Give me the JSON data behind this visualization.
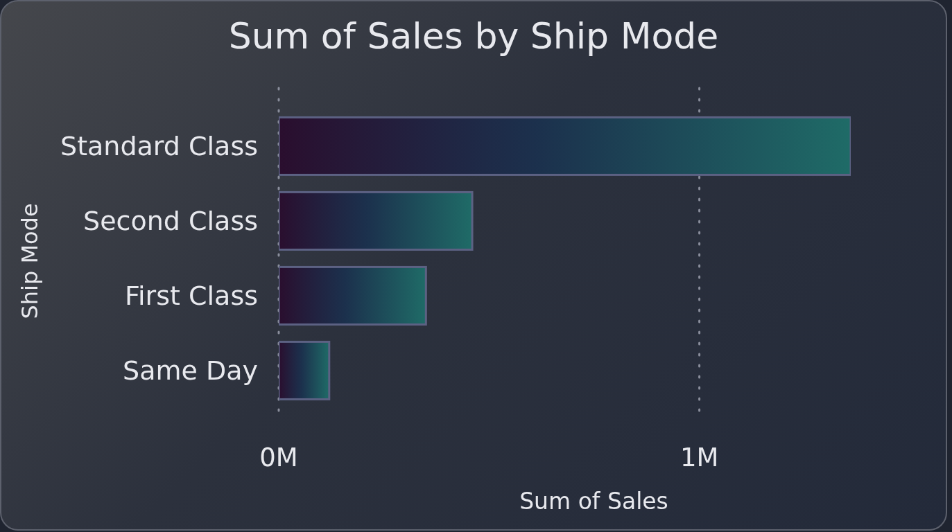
{
  "chart_data": {
    "type": "bar",
    "orientation": "horizontal",
    "title": "Sum of Sales by Ship Mode",
    "xlabel": "Sum of Sales",
    "ylabel": "Ship Mode",
    "categories": [
      "Standard Class",
      "Second Class",
      "First Class",
      "Same Day"
    ],
    "values": [
      1.36,
      0.46,
      0.35,
      0.12
    ],
    "color": "#1f6b67",
    "xlim": [
      0,
      1.36
    ],
    "xticks": [
      {
        "value": 0,
        "label": "0M"
      },
      {
        "value": 1,
        "label": "1M"
      }
    ],
    "grid": "x",
    "legend": false
  }
}
